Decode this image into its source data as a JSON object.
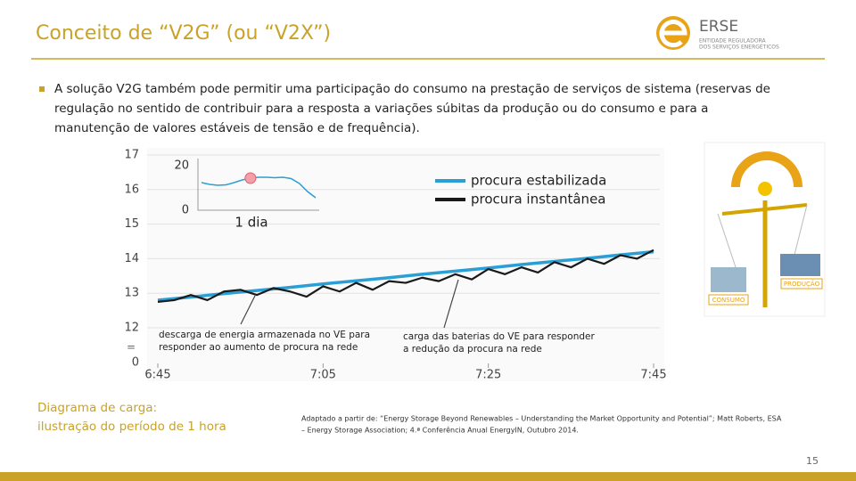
{
  "header": {
    "title": "Conceito de “V2G” (ou “V2X”)",
    "logo_name": "ERSE",
    "logo_subtitle": [
      "ENTIDADE REGULADORA",
      "DOS SERVIÇOS ENERGÉTICOS"
    ]
  },
  "bullet": "A solução V2G também pode permitir uma participação do consumo na prestação de serviços de sistema (reservas de regulação no sentido de contribuir para a resposta a variações súbitas da produção ou do consumo e para a manutenção de valores estáveis de tensão e de frequência).",
  "chart_data": {
    "type": "line",
    "xlim": [
      0,
      60
    ],
    "xticks": [
      {
        "value": 0,
        "label": "6:45"
      },
      {
        "value": 20,
        "label": "7:05"
      },
      {
        "value": 40,
        "label": "7:25"
      },
      {
        "value": 60,
        "label": "7:45"
      }
    ],
    "ylim": [
      12,
      17
    ],
    "yticks": [
      12,
      13,
      14,
      15,
      16,
      17
    ],
    "y_break_label": "0",
    "legend": "top-right",
    "series": [
      {
        "name": "procura estabilizada",
        "color": "#2a9fd6",
        "x": [
          0,
          4,
          8,
          12,
          16,
          20,
          24,
          28,
          32,
          36,
          40,
          44,
          48,
          52,
          56,
          60
        ],
        "values": [
          12.8,
          12.89,
          12.99,
          13.08,
          13.17,
          13.27,
          13.36,
          13.45,
          13.55,
          13.64,
          13.73,
          13.83,
          13.92,
          14.01,
          14.11,
          14.2
        ]
      },
      {
        "name": "procura instantânea",
        "color": "#1a1a1a",
        "x": [
          0,
          2,
          4,
          6,
          8,
          10,
          12,
          14,
          16,
          18,
          20,
          22,
          24,
          26,
          28,
          30,
          32,
          34,
          36,
          38,
          40,
          42,
          44,
          46,
          48,
          50,
          52,
          54,
          56,
          58,
          60
        ],
        "values": [
          12.75,
          12.8,
          12.95,
          12.8,
          13.05,
          13.1,
          12.95,
          13.15,
          13.05,
          12.9,
          13.2,
          13.05,
          13.3,
          13.1,
          13.35,
          13.3,
          13.45,
          13.35,
          13.55,
          13.4,
          13.7,
          13.55,
          13.75,
          13.6,
          13.9,
          13.75,
          14.0,
          13.85,
          14.1,
          14.0,
          14.25
        ]
      }
    ],
    "inset": {
      "ylim": [
        0,
        20
      ],
      "yticks": [
        0,
        20
      ],
      "label": "1 dia",
      "color": "#2a9fd6",
      "values": [
        12.4,
        11.6,
        11.2,
        11.4,
        12.4,
        13.6,
        14.4,
        14.8,
        14.8,
        14.6,
        14.8,
        14.2,
        12,
        8.4,
        5.6
      ],
      "highlight_index": 6
    },
    "annotations": [
      [
        "descarga de energia armazenada no VE para",
        "responder ao aumento de procura na rede"
      ],
      [
        "carga das baterias do VE para responder",
        "a redução da procura na rede"
      ]
    ]
  },
  "illustration": {
    "labels": [
      "PRODUÇÃO",
      "CONSUMO"
    ]
  },
  "caption": [
    "Diagrama de carga:",
    "ilustração do período de 1 hora"
  ],
  "source": [
    "Adaptado a partir de: “Energy Storage Beyond Renewables – Understanding the Market Opportunity and Potential”; Matt Roberts, ESA",
    "– Energy Storage Association; 4.ª Conferência Anual EnergyIN, Outubro 2014."
  ],
  "page_number": "15"
}
